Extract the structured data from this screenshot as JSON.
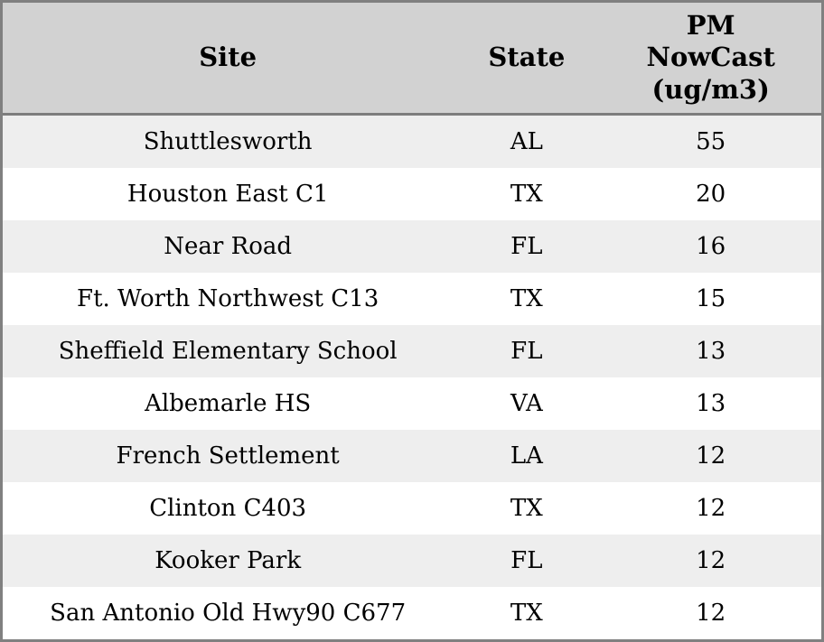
{
  "table": {
    "columns": {
      "site": "Site",
      "state": "State",
      "pm": "PM\nNowCast\n(ug/m3)"
    },
    "rows": [
      {
        "site": "Shuttlesworth",
        "state": "AL",
        "pm": "55"
      },
      {
        "site": "Houston East C1",
        "state": "TX",
        "pm": "20"
      },
      {
        "site": "Near Road",
        "state": "FL",
        "pm": "16"
      },
      {
        "site": "Ft. Worth Northwest C13",
        "state": "TX",
        "pm": "15"
      },
      {
        "site": "Sheffield Elementary School",
        "state": "FL",
        "pm": "13"
      },
      {
        "site": "Albemarle HS",
        "state": "VA",
        "pm": "13"
      },
      {
        "site": "French Settlement",
        "state": "LA",
        "pm": "12"
      },
      {
        "site": "Clinton C403",
        "state": "TX",
        "pm": "12"
      },
      {
        "site": "Kooker Park",
        "state": "FL",
        "pm": "12"
      },
      {
        "site": "San Antonio Old Hwy90 C677",
        "state": "TX",
        "pm": "12"
      }
    ],
    "colors": {
      "header_bg": "#d2d2d2",
      "row_odd_bg": "#eeeeee",
      "row_even_bg": "#ffffff",
      "frame_border": "#808080",
      "header_separator": "#7d7d7d",
      "text": "#000000"
    }
  }
}
